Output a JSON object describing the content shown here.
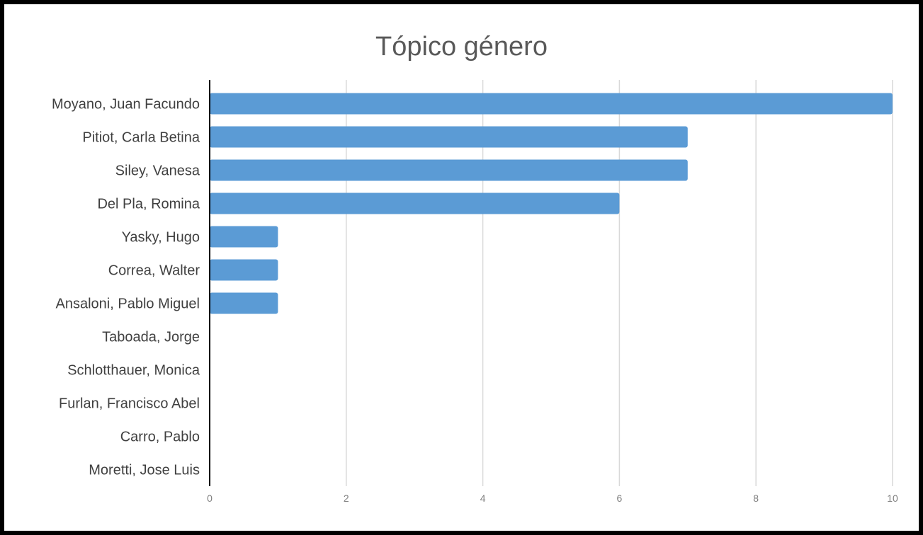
{
  "chart_data": {
    "type": "bar",
    "orientation": "horizontal",
    "title": "Tópico género",
    "xlabel": "",
    "ylabel": "",
    "categories": [
      "Moyano, Juan Facundo",
      "Pitiot, Carla Betina",
      "Siley, Vanesa",
      "Del Pla, Romina",
      "Yasky, Hugo",
      "Correa, Walter",
      "Ansaloni, Pablo Miguel",
      "Taboada, Jorge",
      "Schlotthauer, Monica",
      "Furlan, Francisco Abel",
      "Carro, Pablo",
      "Moretti, Jose Luis"
    ],
    "values": [
      10,
      7,
      7,
      6,
      1,
      1,
      1,
      0,
      0,
      0,
      0,
      0
    ],
    "xlim": [
      0,
      10
    ],
    "xticks": [
      "0",
      "2",
      "4",
      "6",
      "8",
      "10"
    ],
    "grid": true,
    "legend": "none",
    "bar_color": "#5B9BD5",
    "grid_color": "#D9D9D9",
    "axis_color": "#000000"
  }
}
